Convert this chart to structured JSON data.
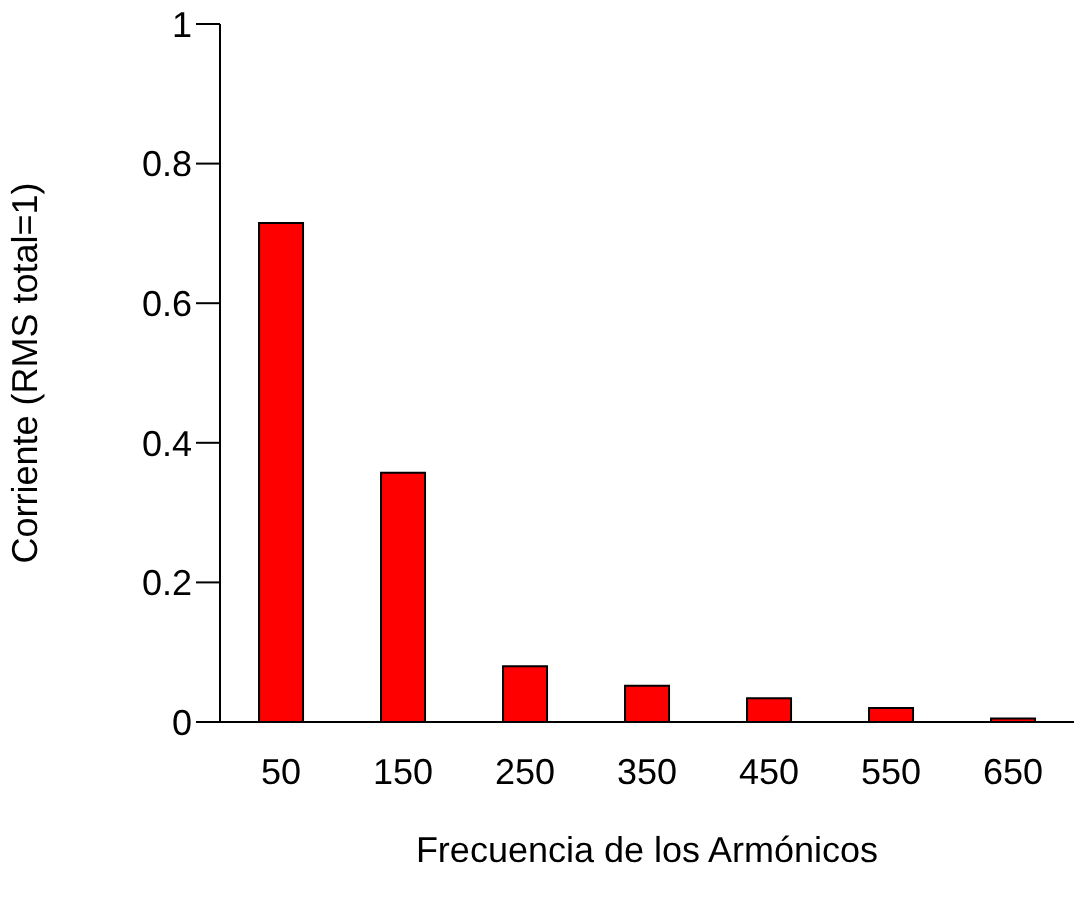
{
  "chart_data": {
    "type": "bar",
    "xlabel": "Frecuencia de los Armónicos",
    "ylabel": "Corriente (RMS total=1)",
    "categories": [
      "50",
      "150",
      "250",
      "350",
      "450",
      "550",
      "650"
    ],
    "values": [
      0.715,
      0.357,
      0.08,
      0.052,
      0.034,
      0.02,
      0.005
    ],
    "color": "#ff0000",
    "ylim": [
      0,
      1
    ],
    "yticks": [
      0,
      0.2,
      0.4,
      0.6,
      0.8,
      1
    ],
    "grid": false,
    "legend": false
  }
}
